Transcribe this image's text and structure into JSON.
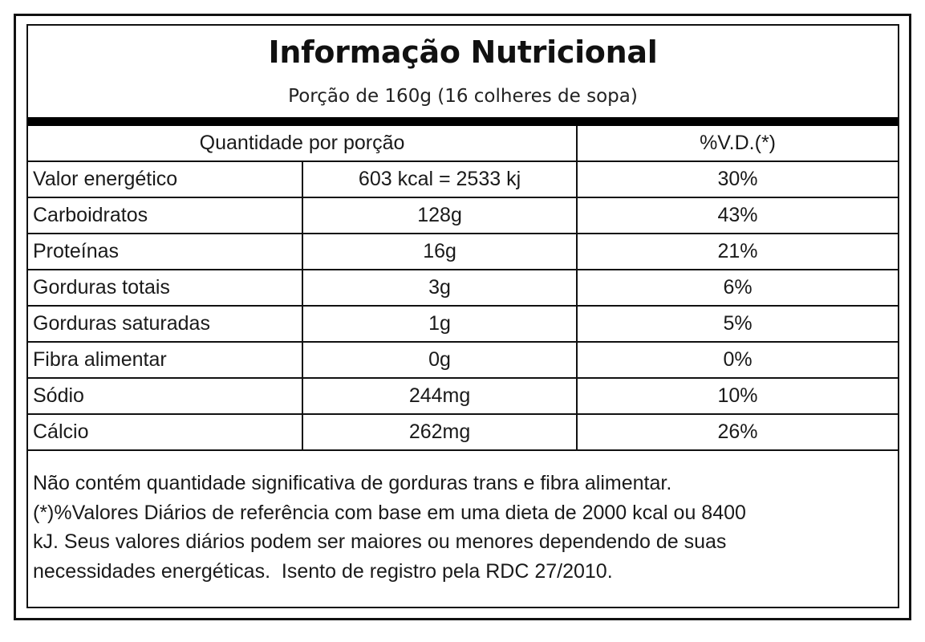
{
  "label": {
    "title": "Informação Nutricional",
    "serving": "Porção de 160g (16 colheres de sopa)",
    "header_quantity": "Quantidade por porção",
    "header_dv": "%V.D.(*)",
    "rows": [
      {
        "name": "Valor energético",
        "amount": "603 kcal = 2533 kj",
        "dv": "30%"
      },
      {
        "name": "Carboidratos",
        "amount": "128g",
        "dv": "43%"
      },
      {
        "name": "Proteínas",
        "amount": "16g",
        "dv": "21%"
      },
      {
        "name": "Gorduras totais",
        "amount": "3g",
        "dv": "6%"
      },
      {
        "name": "Gorduras saturadas",
        "amount": "1g",
        "dv": "5%"
      },
      {
        "name": "Fibra alimentar",
        "amount": "0g",
        "dv": "0%"
      },
      {
        "name": "Sódio",
        "amount": "244mg",
        "dv": "10%"
      },
      {
        "name": "Cálcio",
        "amount": "262mg",
        "dv": "26%"
      }
    ],
    "footnote_lines": [
      "Não contém quantidade significativa de gorduras trans e fibra alimentar.",
      "(*)%Valores Diários de referência com base em uma dieta de 2000 kcal ou 8400",
      "kJ. Seus valores diários podem ser maiores ou menores dependendo de suas",
      "necessidades energéticas.  Isento de registro pela RDC 27/2010."
    ]
  }
}
